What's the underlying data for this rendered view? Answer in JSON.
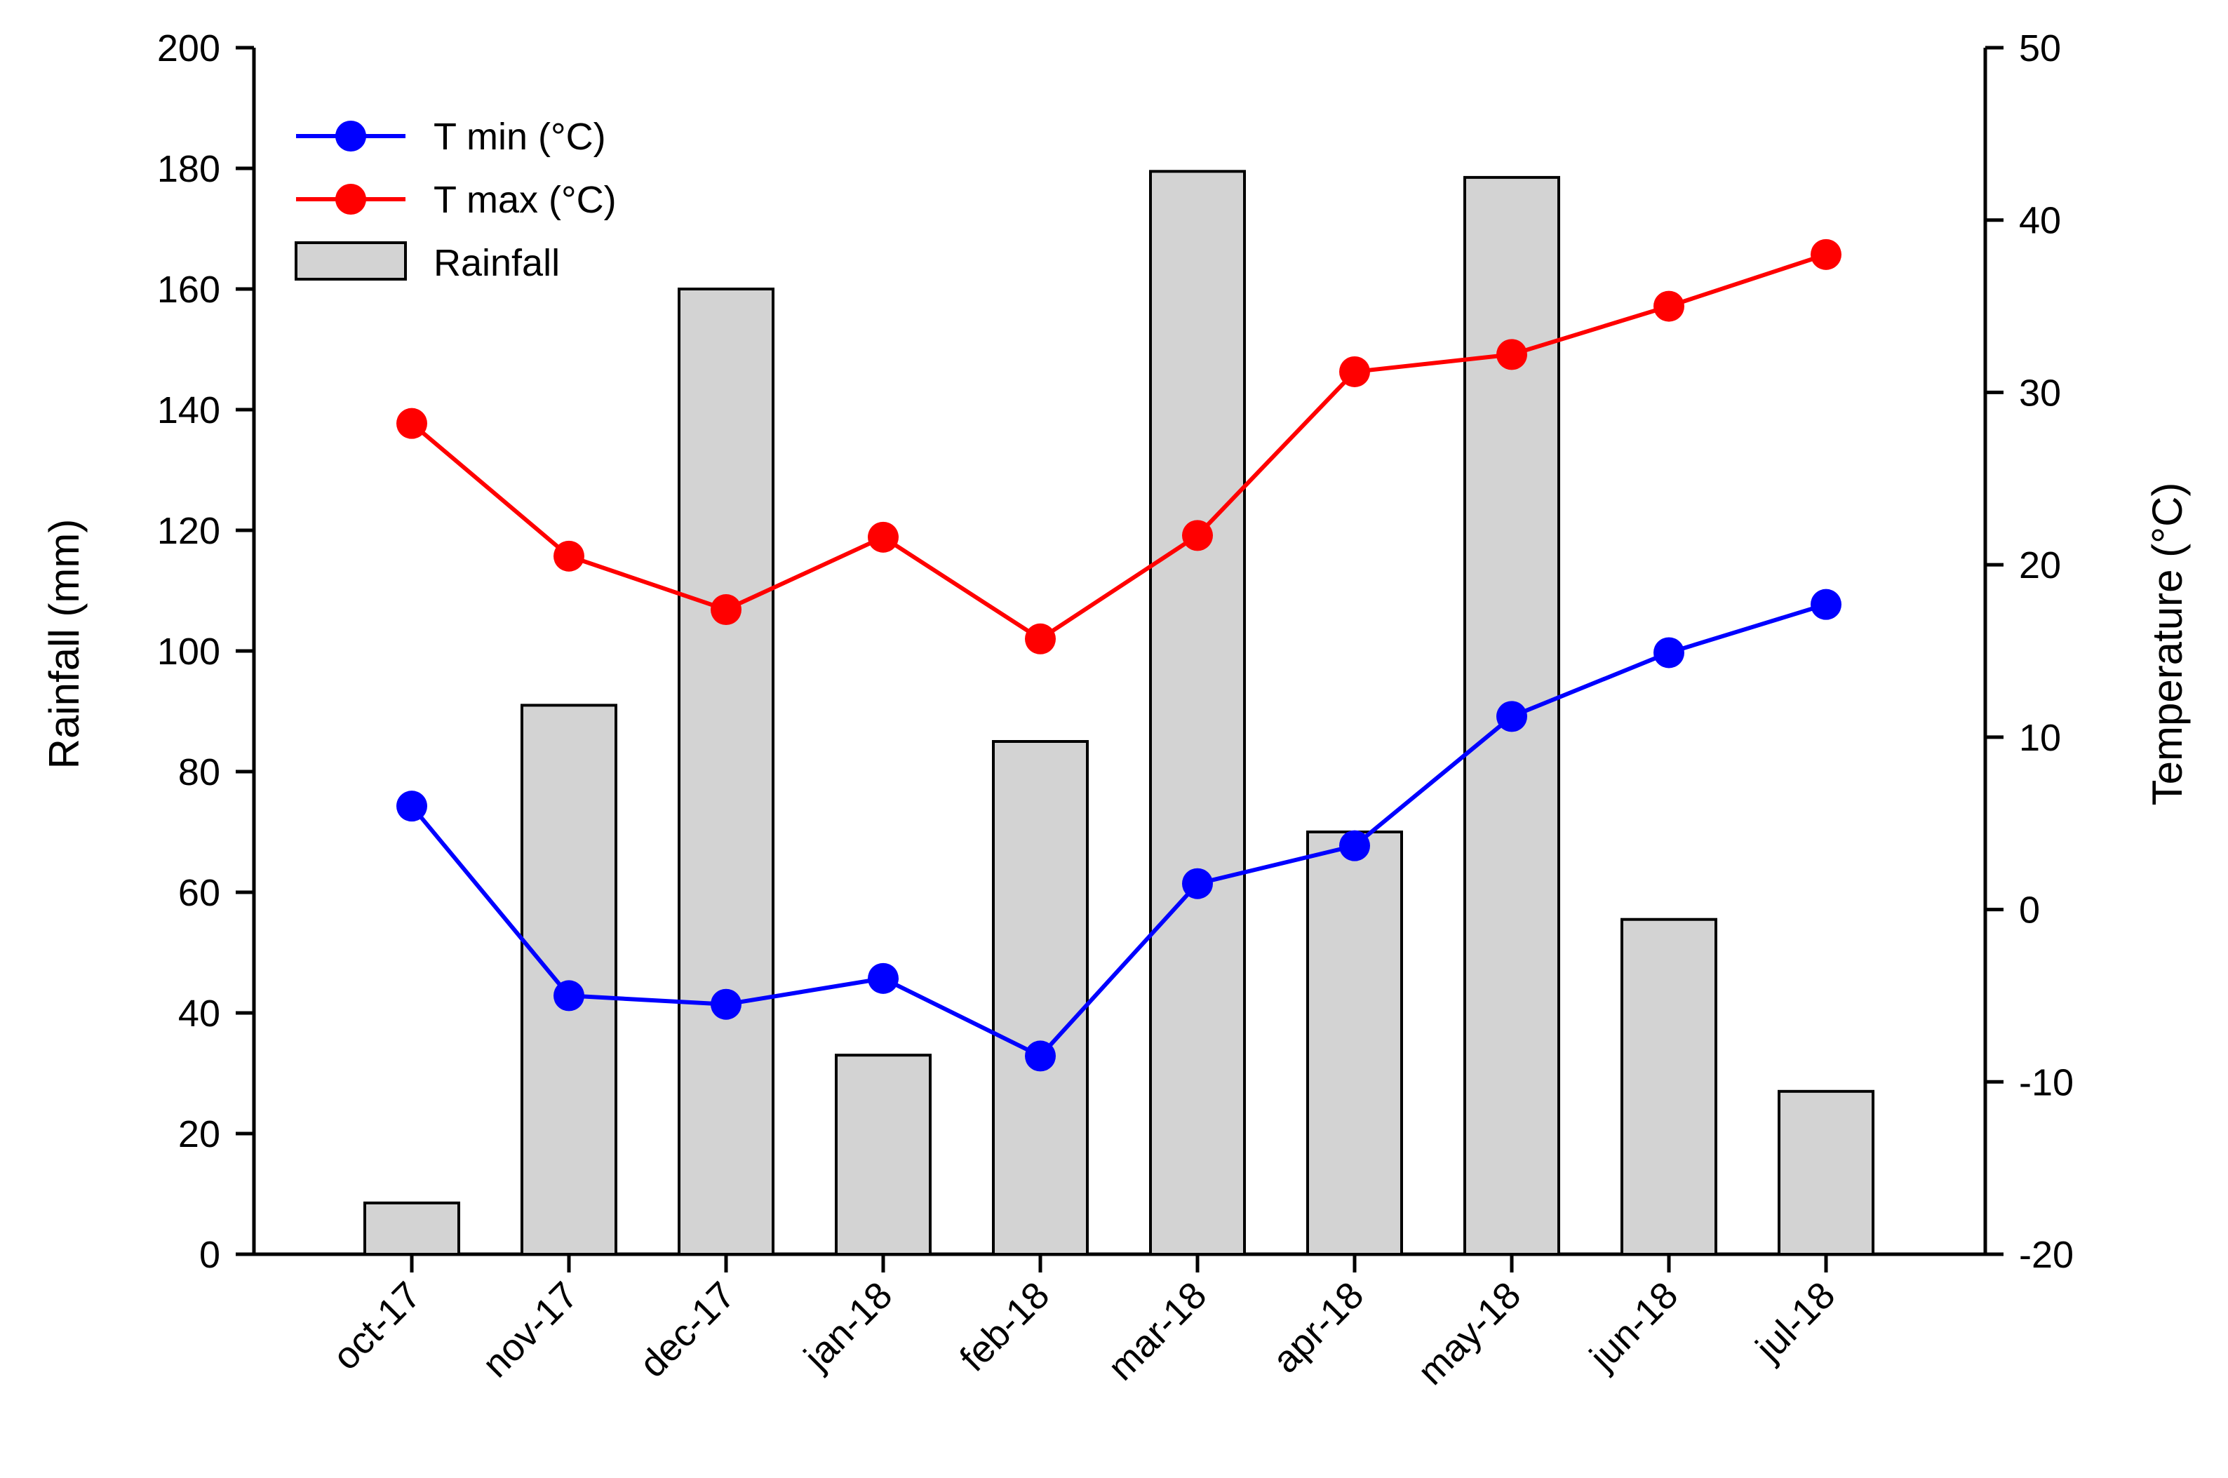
{
  "chart_data": {
    "type": "bar",
    "categories": [
      "oct-17",
      "nov-17",
      "dec-17",
      "jan-18",
      "feb-18",
      "mar-18",
      "apr-18",
      "may-18",
      "jun-18",
      "jul-18"
    ],
    "series": [
      {
        "name": "Rainfall",
        "type": "bar",
        "axis": "left",
        "values": [
          8.5,
          91,
          160,
          33,
          85,
          179.5,
          70,
          178.5,
          55.5,
          27
        ]
      },
      {
        "name": "T min (°C)",
        "type": "line",
        "axis": "right",
        "values": [
          6,
          -5,
          -5.5,
          -4,
          -8.5,
          1.5,
          3.7,
          11.2,
          14.9,
          17.7
        ]
      },
      {
        "name": "T max (°C)",
        "type": "line",
        "axis": "right",
        "values": [
          28.2,
          20.5,
          17.4,
          21.6,
          15.7,
          21.7,
          31.2,
          32.2,
          35,
          38
        ]
      }
    ],
    "ylabel": "Rainfall (mm)",
    "y2label": "Temperature (°C)",
    "ylim": [
      0,
      200
    ],
    "y2lim": [
      -20,
      50
    ],
    "yticks": [
      "0",
      "20",
      "40",
      "60",
      "80",
      "100",
      "120",
      "140",
      "160",
      "180",
      "200"
    ],
    "y2ticks": [
      "-20",
      "-10",
      "0",
      "10",
      "20",
      "30",
      "40",
      "50"
    ],
    "legend": [
      {
        "label": "T min (°C)",
        "color": "#0000ff",
        "marker": "circle"
      },
      {
        "label": "T max (°C)",
        "color": "#ff0000",
        "marker": "circle"
      },
      {
        "label": "Rainfall",
        "color": "#d3d3d3",
        "marker": "bar"
      }
    ],
    "legend_position": "top-left",
    "grid": false,
    "colors": {
      "tmin": "#0000ff",
      "tmax": "#ff0000",
      "bar_fill": "#d3d3d3",
      "bar_stroke": "#000000"
    }
  }
}
